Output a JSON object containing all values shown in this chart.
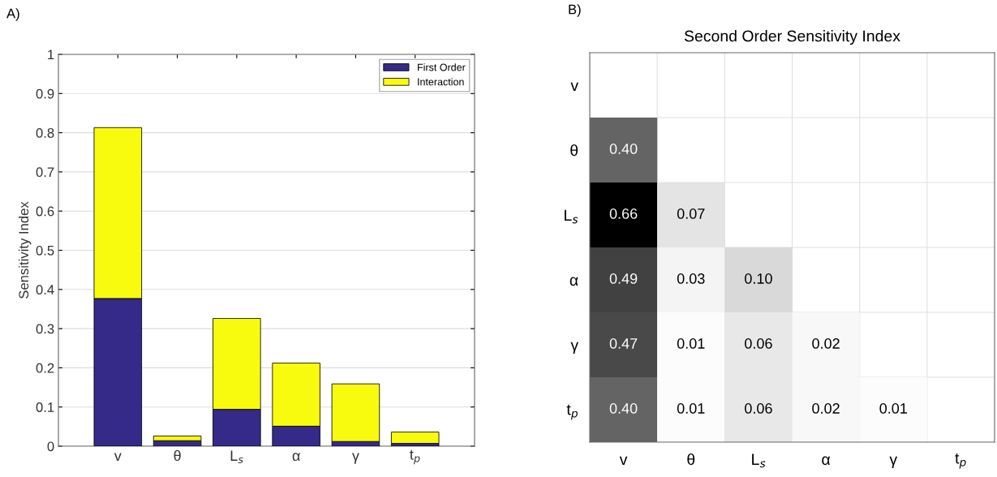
{
  "chart_data": [
    {
      "type": "bar",
      "stacked": true,
      "ylabel": "Sensitivity Index",
      "annotations": [
        "A)"
      ],
      "categories": [
        "v",
        "θ",
        "L$_{s}$",
        "α",
        "γ",
        "t$_{p}$"
      ],
      "series": [
        {
          "name": "First Order",
          "color": "#352a87",
          "values": [
            0.377,
            0.014,
            0.094,
            0.051,
            0.012,
            0.007
          ]
        },
        {
          "name": "Interaction",
          "color": "#f9fb0e",
          "values": [
            0.436,
            0.012,
            0.232,
            0.161,
            0.147,
            0.029
          ]
        }
      ],
      "ylim": [
        0,
        1
      ],
      "yticks": [
        0,
        0.1,
        0.2,
        0.3,
        0.4,
        0.5,
        0.6,
        0.7,
        0.8,
        0.9,
        1
      ],
      "grid": "y",
      "legend": "top right"
    },
    {
      "type": "heatmap",
      "title": "Second Order Sensitivity Index",
      "annotations": [
        "B)"
      ],
      "categories": [
        "v",
        "θ",
        "L$_{s}$",
        "α",
        "γ",
        "t$_{p}$"
      ],
      "y_categories": [
        "v",
        "θ",
        "L$_{s}$",
        "α",
        "γ",
        "t$_{p}$"
      ],
      "cells": [
        [
          null,
          null,
          null,
          null,
          null,
          null
        ],
        [
          0.4,
          null,
          null,
          null,
          null,
          null
        ],
        [
          0.66,
          0.07,
          null,
          null,
          null,
          null
        ],
        [
          0.49,
          0.03,
          0.1,
          null,
          null,
          null
        ],
        [
          0.47,
          0.01,
          0.06,
          0.02,
          null,
          null
        ],
        [
          0.4,
          0.01,
          0.06,
          0.02,
          0.01,
          null
        ]
      ],
      "cell_labels": [
        [
          null,
          null,
          null,
          null,
          null,
          null
        ],
        [
          "0.40",
          null,
          null,
          null,
          null,
          null
        ],
        [
          "0.66",
          "0.07",
          null,
          null,
          null,
          null
        ],
        [
          "0.49",
          "0.03",
          "0.10",
          null,
          null,
          null
        ],
        [
          "0.47",
          "0.01",
          "0.06",
          "0.02",
          null,
          null
        ],
        [
          "0.40",
          "0.01",
          "0.06",
          "0.02",
          "0.01",
          null
        ]
      ],
      "grid": true
    }
  ]
}
